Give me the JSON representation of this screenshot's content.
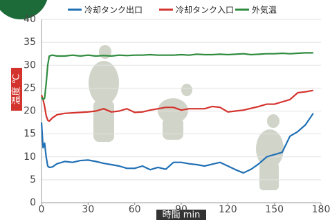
{
  "chart_data": {
    "type": "line",
    "x": [
      0,
      1,
      2,
      3,
      4,
      5,
      7,
      10,
      15,
      20,
      25,
      30,
      35,
      40,
      45,
      50,
      55,
      60,
      65,
      70,
      75,
      80,
      85,
      90,
      95,
      100,
      105,
      110,
      115,
      120,
      125,
      130,
      135,
      140,
      145,
      150,
      155,
      160,
      165,
      170,
      175
    ],
    "series": [
      {
        "name": "冷却タンク出口",
        "color": "#1f6fb5",
        "values": [
          17.5,
          12,
          13,
          10,
          8,
          7.7,
          7.8,
          8.5,
          9,
          8.8,
          9.2,
          9.3,
          9,
          8.6,
          8.3,
          8,
          7.5,
          7.5,
          8,
          7.2,
          7.7,
          7.3,
          8.8,
          8.8,
          8.5,
          8.3,
          8,
          8.4,
          8.8,
          8,
          7.2,
          6.5,
          7.3,
          8.5,
          10,
          10.5,
          11,
          14.5,
          15.5,
          17,
          19.5
        ]
      },
      {
        "name": "冷却タンク入口",
        "color": "#d4322c",
        "values": [
          23.5,
          22.5,
          21,
          19,
          18,
          17.8,
          18.5,
          19.2,
          19.5,
          19.6,
          19.7,
          19.8,
          20,
          20.5,
          19.8,
          20,
          20.5,
          19.7,
          19.8,
          20.2,
          20.5,
          20.8,
          20.8,
          20.2,
          20.5,
          20.5,
          20.5,
          21,
          20.8,
          19.8,
          20,
          20.2,
          20.6,
          21,
          21.5,
          21.5,
          22,
          22.5,
          24,
          24.2,
          24.5
        ]
      },
      {
        "name": "外気温",
        "color": "#2e8b3e",
        "values": [
          23,
          22.5,
          22.8,
          26,
          30,
          32,
          32.2,
          32,
          32,
          32.2,
          32,
          32.2,
          32,
          32.1,
          32,
          32.2,
          32.1,
          32.2,
          32.2,
          32.3,
          32.2,
          32.2,
          32.2,
          32.3,
          32.2,
          32.4,
          32.3,
          32.3,
          32.4,
          32.3,
          32.4,
          32.5,
          32.3,
          32.4,
          32.5,
          32.5,
          32.6,
          32.5,
          32.6,
          32.7,
          32.7
        ]
      }
    ],
    "xlim": [
      0,
      180
    ],
    "xticks": [
      0,
      30,
      60,
      90,
      120,
      150,
      180
    ],
    "ylim": [
      0,
      40
    ],
    "yticks": [
      0,
      5,
      10,
      15,
      20,
      25,
      30,
      35,
      40
    ],
    "xlabel": "時間 min",
    "ylabel": "温度 ℃",
    "grid": true
  }
}
